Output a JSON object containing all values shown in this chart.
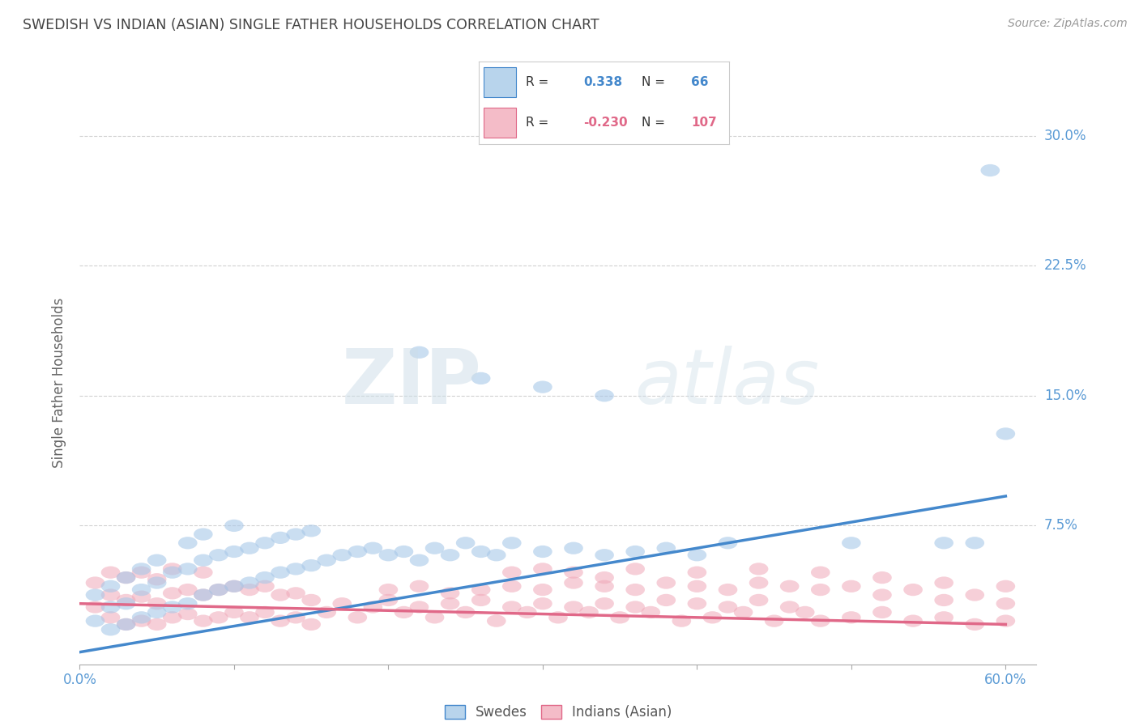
{
  "title": "SWEDISH VS INDIAN (ASIAN) SINGLE FATHER HOUSEHOLDS CORRELATION CHART",
  "source": "Source: ZipAtlas.com",
  "ylabel": "Single Father Households",
  "ytick_labels": [
    "7.5%",
    "15.0%",
    "22.5%",
    "30.0%"
  ],
  "ytick_values": [
    0.075,
    0.15,
    0.225,
    0.3
  ],
  "xlim": [
    0.0,
    0.62
  ],
  "ylim": [
    -0.005,
    0.32
  ],
  "blue_R": 0.338,
  "blue_N": 66,
  "pink_R": -0.23,
  "pink_N": 107,
  "blue_color": "#a8c8e8",
  "pink_color": "#f0a8b8",
  "blue_line_color": "#4488cc",
  "pink_line_color": "#e06888",
  "legend_blue_fill": "#b8d4ec",
  "legend_pink_fill": "#f4bcc8",
  "watermark_zip": "ZIP",
  "watermark_atlas": "atlas",
  "background_color": "#ffffff",
  "grid_color": "#cccccc",
  "title_color": "#444444",
  "axis_label_color": "#5b9bd5",
  "blue_line_start_y": 0.002,
  "blue_line_end_y": 0.092,
  "pink_line_start_y": 0.03,
  "pink_line_end_y": 0.018,
  "blue_scatter_x": [
    0.01,
    0.01,
    0.02,
    0.02,
    0.02,
    0.03,
    0.03,
    0.03,
    0.04,
    0.04,
    0.04,
    0.05,
    0.05,
    0.05,
    0.06,
    0.06,
    0.07,
    0.07,
    0.07,
    0.08,
    0.08,
    0.08,
    0.09,
    0.09,
    0.1,
    0.1,
    0.1,
    0.11,
    0.11,
    0.12,
    0.12,
    0.13,
    0.13,
    0.14,
    0.14,
    0.15,
    0.15,
    0.16,
    0.17,
    0.18,
    0.19,
    0.2,
    0.21,
    0.22,
    0.23,
    0.24,
    0.25,
    0.26,
    0.27,
    0.28,
    0.3,
    0.32,
    0.34,
    0.36,
    0.38,
    0.4,
    0.22,
    0.26,
    0.3,
    0.34,
    0.42,
    0.5,
    0.56,
    0.58,
    0.59,
    0.6
  ],
  "blue_scatter_y": [
    0.02,
    0.035,
    0.015,
    0.028,
    0.04,
    0.018,
    0.03,
    0.045,
    0.022,
    0.038,
    0.05,
    0.025,
    0.042,
    0.055,
    0.028,
    0.048,
    0.03,
    0.05,
    0.065,
    0.035,
    0.055,
    0.07,
    0.038,
    0.058,
    0.04,
    0.06,
    0.075,
    0.042,
    0.062,
    0.045,
    0.065,
    0.048,
    0.068,
    0.05,
    0.07,
    0.052,
    0.072,
    0.055,
    0.058,
    0.06,
    0.062,
    0.058,
    0.06,
    0.055,
    0.062,
    0.058,
    0.065,
    0.06,
    0.058,
    0.065,
    0.06,
    0.062,
    0.058,
    0.06,
    0.062,
    0.058,
    0.175,
    0.16,
    0.155,
    0.15,
    0.065,
    0.065,
    0.065,
    0.065,
    0.28,
    0.128
  ],
  "pink_scatter_x": [
    0.01,
    0.01,
    0.02,
    0.02,
    0.02,
    0.03,
    0.03,
    0.03,
    0.04,
    0.04,
    0.04,
    0.05,
    0.05,
    0.05,
    0.06,
    0.06,
    0.06,
    0.07,
    0.07,
    0.08,
    0.08,
    0.08,
    0.09,
    0.09,
    0.1,
    0.1,
    0.11,
    0.11,
    0.12,
    0.12,
    0.13,
    0.13,
    0.14,
    0.14,
    0.15,
    0.15,
    0.16,
    0.17,
    0.18,
    0.19,
    0.2,
    0.21,
    0.22,
    0.23,
    0.24,
    0.25,
    0.26,
    0.27,
    0.28,
    0.29,
    0.3,
    0.31,
    0.32,
    0.33,
    0.34,
    0.35,
    0.36,
    0.37,
    0.38,
    0.39,
    0.4,
    0.41,
    0.42,
    0.43,
    0.44,
    0.45,
    0.46,
    0.47,
    0.48,
    0.5,
    0.52,
    0.54,
    0.56,
    0.58,
    0.6,
    0.3,
    0.32,
    0.34,
    0.36,
    0.38,
    0.4,
    0.42,
    0.44,
    0.46,
    0.48,
    0.5,
    0.52,
    0.54,
    0.56,
    0.58,
    0.6,
    0.28,
    0.3,
    0.32,
    0.34,
    0.36,
    0.4,
    0.44,
    0.48,
    0.52,
    0.56,
    0.6,
    0.2,
    0.22,
    0.24,
    0.26,
    0.28
  ],
  "pink_scatter_y": [
    0.028,
    0.042,
    0.022,
    0.035,
    0.048,
    0.018,
    0.032,
    0.045,
    0.02,
    0.034,
    0.048,
    0.018,
    0.03,
    0.044,
    0.022,
    0.036,
    0.05,
    0.024,
    0.038,
    0.02,
    0.035,
    0.048,
    0.022,
    0.038,
    0.025,
    0.04,
    0.022,
    0.038,
    0.025,
    0.04,
    0.02,
    0.035,
    0.022,
    0.036,
    0.018,
    0.032,
    0.025,
    0.03,
    0.022,
    0.028,
    0.032,
    0.025,
    0.028,
    0.022,
    0.03,
    0.025,
    0.032,
    0.02,
    0.028,
    0.025,
    0.03,
    0.022,
    0.028,
    0.025,
    0.03,
    0.022,
    0.028,
    0.025,
    0.032,
    0.02,
    0.03,
    0.022,
    0.028,
    0.025,
    0.032,
    0.02,
    0.028,
    0.025,
    0.02,
    0.022,
    0.025,
    0.02,
    0.022,
    0.018,
    0.02,
    0.038,
    0.042,
    0.04,
    0.038,
    0.042,
    0.04,
    0.038,
    0.042,
    0.04,
    0.038,
    0.04,
    0.035,
    0.038,
    0.032,
    0.035,
    0.03,
    0.048,
    0.05,
    0.048,
    0.045,
    0.05,
    0.048,
    0.05,
    0.048,
    0.045,
    0.042,
    0.04,
    0.038,
    0.04,
    0.036,
    0.038,
    0.04
  ]
}
